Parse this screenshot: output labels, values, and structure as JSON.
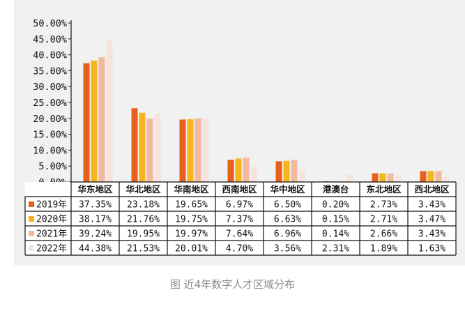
{
  "chart_data": {
    "type": "bar",
    "title": "",
    "xlabel": "",
    "ylabel": "",
    "ylim": [
      0,
      50
    ],
    "y_ticks": [
      "50.00%",
      "45.00%",
      "40.00%",
      "35.00%",
      "30.00%",
      "25.00%",
      "20.00%",
      "15.00%",
      "10.00%",
      "5.00%",
      "0.00%"
    ],
    "categories": [
      "华东地区",
      "华北地区",
      "华南地区",
      "西南地区",
      "华中地区",
      "港澳台",
      "东北地区",
      "西北地区"
    ],
    "legend_placement": "table-left",
    "series": [
      {
        "name": "2019年",
        "color": "#E8601C",
        "values": [
          37.35,
          23.18,
          19.65,
          6.97,
          6.5,
          0.2,
          2.73,
          3.43
        ],
        "labels": [
          "37.35%",
          "23.18%",
          "19.65%",
          "6.97%",
          "6.50%",
          "0.20%",
          "2.73%",
          "3.43%"
        ]
      },
      {
        "name": "2020年",
        "color": "#F6B51C",
        "values": [
          38.17,
          21.76,
          19.75,
          7.37,
          6.63,
          0.15,
          2.71,
          3.47
        ],
        "labels": [
          "38.17%",
          "21.76%",
          "19.75%",
          "7.37%",
          "6.63%",
          "0.15%",
          "2.71%",
          "3.47%"
        ]
      },
      {
        "name": "2021年",
        "color": "#F2B8A0",
        "values": [
          39.24,
          19.95,
          19.97,
          7.64,
          6.96,
          0.14,
          2.66,
          3.43
        ],
        "labels": [
          "39.24%",
          "19.95%",
          "19.97%",
          "7.64%",
          "6.96%",
          "0.14%",
          "2.66%",
          "3.43%"
        ]
      },
      {
        "name": "2022年",
        "color": "#F7E3DA",
        "values": [
          44.38,
          21.53,
          20.01,
          4.7,
          3.56,
          2.31,
          1.89,
          1.63
        ],
        "labels": [
          "44.38%",
          "21.53%",
          "20.01%",
          "4.70%",
          "3.56%",
          "2.31%",
          "1.89%",
          "1.63%"
        ]
      }
    ]
  },
  "caption": "图 近4年数字人才区域分布"
}
